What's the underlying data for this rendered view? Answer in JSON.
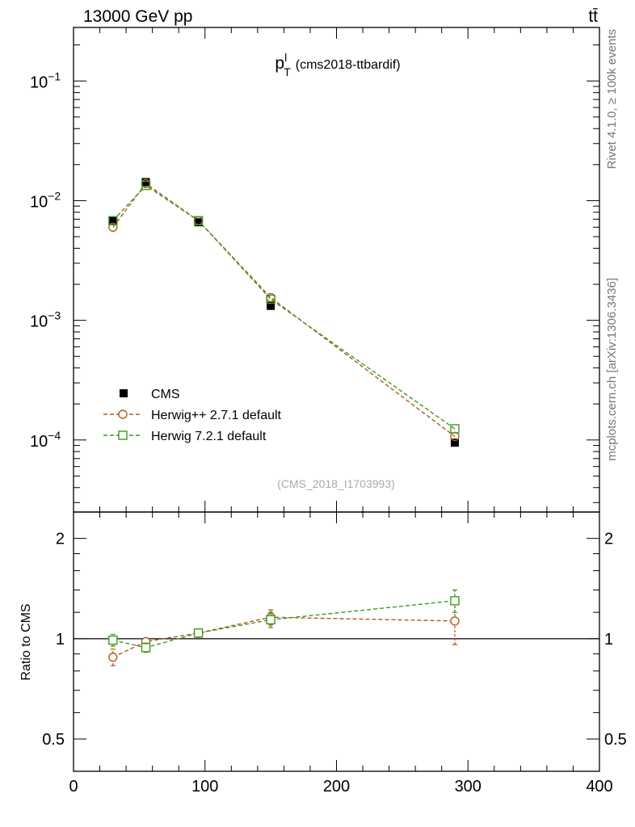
{
  "header": {
    "left": "13000 GeV pp",
    "right": "tt̄"
  },
  "plot_title": {
    "var": "p",
    "sup": "l",
    "sub": "T",
    "rest": "(cms2018-ttbardif)"
  },
  "watermark": "(CMS_2018_I1703993)",
  "side_labels": {
    "top": "Rivet 4.1.0, ≥ 100k events",
    "bottom": "mcplots.cern.ch [arXiv:1306.3436]"
  },
  "colors": {
    "cms": "#000000",
    "herwigpp": "#b35a1f",
    "herwig7": "#3d9a1f"
  },
  "chart_data": [
    {
      "type": "scatter",
      "panel": "main",
      "yscale": "log",
      "xlim": [
        0,
        400
      ],
      "ylim": [
        2.5e-05,
        0.28
      ],
      "ytick_labels": [
        {
          "value": 0.1,
          "base": "10",
          "exp": "−1"
        },
        {
          "value": 0.01,
          "base": "10",
          "exp": "−2"
        },
        {
          "value": 0.001,
          "base": "10",
          "exp": "−3"
        },
        {
          "value": 0.0001,
          "base": "10",
          "exp": "−4"
        }
      ],
      "legend_position": "bottom-left",
      "series": [
        {
          "name": "CMS",
          "style": "data",
          "marker": "filled-square",
          "x": [
            30,
            55,
            95,
            150,
            290
          ],
          "y": [
            0.0068,
            0.0143,
            0.0066,
            0.00132,
            9.5e-05
          ]
        },
        {
          "name": "Herwig++ 2.7.1 default",
          "style": "dashed",
          "marker": "open-circle",
          "x": [
            30,
            55,
            95,
            150,
            290
          ],
          "y": [
            0.006,
            0.0139,
            0.0068,
            0.00155,
            0.000107
          ]
        },
        {
          "name": "Herwig 7.2.1 default",
          "style": "dashed",
          "marker": "open-square",
          "x": [
            30,
            55,
            95,
            150,
            290
          ],
          "y": [
            0.0068,
            0.0134,
            0.0068,
            0.0015,
            0.000124
          ]
        }
      ]
    },
    {
      "type": "scatter",
      "panel": "ratio",
      "yscale": "log",
      "ylabel": "Ratio to CMS",
      "xlim": [
        0,
        400
      ],
      "ylim": [
        0.4,
        2.4
      ],
      "xticks": [
        0,
        100,
        200,
        300,
        400
      ],
      "ytick_labels": [
        {
          "value": 0.5,
          "label": "0.5"
        },
        {
          "value": 1,
          "label": "1"
        },
        {
          "value": 2,
          "label": "2"
        }
      ],
      "series": [
        {
          "name": "Herwig++ 2.7.1 default",
          "x": [
            30,
            55,
            95,
            150,
            290
          ],
          "y": [
            0.88,
            0.98,
            1.04,
            1.16,
            1.13
          ],
          "err": [
            0.05,
            0.02,
            0.03,
            0.06,
            0.17
          ]
        },
        {
          "name": "Herwig 7.2.1 default",
          "x": [
            30,
            55,
            95,
            150,
            290
          ],
          "y": [
            0.99,
            0.94,
            1.04,
            1.14,
            1.3
          ],
          "err": [
            0.04,
            0.03,
            0.03,
            0.06,
            0.1
          ]
        }
      ]
    }
  ]
}
